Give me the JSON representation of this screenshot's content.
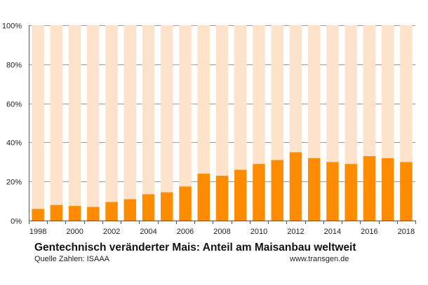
{
  "chart_data": {
    "type": "bar",
    "stacked_to_100": true,
    "title": "Gentechnisch veränderter Mais: Anteil am Maisanbau weltweit",
    "source": "Quelle Zahlen: ISAAA",
    "website": "www.transgen.de",
    "categories": [
      "1998",
      "1999",
      "2000",
      "2001",
      "2002",
      "2003",
      "2004",
      "2005",
      "2006",
      "2007",
      "2008",
      "2009",
      "2010",
      "2011",
      "2012",
      "2013",
      "2014",
      "2015",
      "2016",
      "2017",
      "2018"
    ],
    "x_tick_labels": [
      "1998",
      "2000",
      "2002",
      "2004",
      "2006",
      "2008",
      "2010",
      "2012",
      "2014",
      "2016",
      "2018"
    ],
    "y_tick_labels": [
      "0%",
      "20%",
      "40%",
      "60%",
      "80%",
      "100%"
    ],
    "ylim": [
      0,
      100
    ],
    "grid": true,
    "series": [
      {
        "values": [
          6,
          8,
          7.5,
          7,
          9.5,
          11,
          13.5,
          14.5,
          17.5,
          24,
          23,
          26,
          29,
          31,
          35,
          32,
          30,
          29,
          33,
          32,
          30
        ],
        "color": "#ff8c00"
      },
      {
        "values": [
          94,
          92,
          92.5,
          93,
          90.5,
          89,
          86.5,
          85.5,
          82.5,
          76,
          77,
          74,
          71,
          69,
          65,
          68,
          70,
          71,
          67,
          68,
          70
        ],
        "color": "#fde3cc"
      }
    ]
  }
}
